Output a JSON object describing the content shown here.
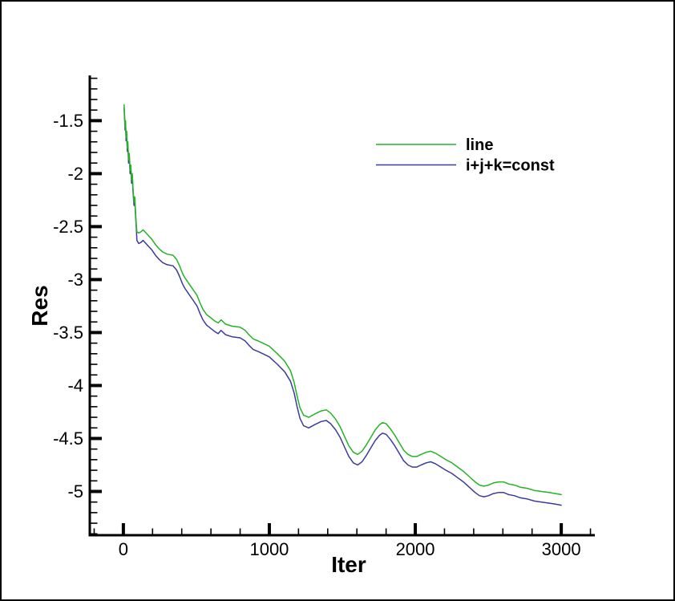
{
  "figure": {
    "background": "#ffffff",
    "border_color": "#000000"
  },
  "chart_data": {
    "type": "line",
    "title": "",
    "xlabel": "Iter",
    "ylabel": "Res",
    "xlim": [
      -230,
      3230
    ],
    "ylim": [
      -5.413,
      -1.073
    ],
    "grid": false,
    "axis_color": "#000000",
    "x_major_ticks": [
      {
        "v": 0,
        "label": "0"
      },
      {
        "v": 1000,
        "label": "1000"
      },
      {
        "v": 2000,
        "label": "2000"
      },
      {
        "v": 3000,
        "label": "3000"
      }
    ],
    "x_minor_tick_step": 200,
    "y_major_ticks": [
      {
        "v": -1.5,
        "label": "-1.5"
      },
      {
        "v": -2,
        "label": "-2"
      },
      {
        "v": -2.5,
        "label": "-2.5"
      },
      {
        "v": -3,
        "label": "-3"
      },
      {
        "v": -3.5,
        "label": "-3.5"
      },
      {
        "v": -4,
        "label": "-4"
      },
      {
        "v": -4.5,
        "label": "-4.5"
      },
      {
        "v": -5,
        "label": "-5"
      }
    ],
    "y_minor_tick_step": 0.1,
    "legend_position": "upper-center",
    "series": [
      {
        "name": "i+j+k=const",
        "color": "#3b3b9e",
        "points": [
          [
            5,
            -1.38
          ],
          [
            8,
            -1.46
          ],
          [
            12,
            -1.59
          ],
          [
            15,
            -1.53
          ],
          [
            19,
            -1.69
          ],
          [
            23,
            -1.63
          ],
          [
            27,
            -1.79
          ],
          [
            31,
            -1.73
          ],
          [
            36,
            -1.9
          ],
          [
            41,
            -1.84
          ],
          [
            46,
            -2.0
          ],
          [
            51,
            -1.95
          ],
          [
            56,
            -2.09
          ],
          [
            61,
            -2.03
          ],
          [
            67,
            -2.19
          ],
          [
            73,
            -2.3
          ],
          [
            78,
            -2.25
          ],
          [
            84,
            -2.41
          ],
          [
            89,
            -2.52
          ],
          [
            93,
            -2.63
          ],
          [
            105,
            -2.66
          ],
          [
            120,
            -2.65
          ],
          [
            135,
            -2.63
          ],
          [
            155,
            -2.66
          ],
          [
            175,
            -2.69
          ],
          [
            195,
            -2.72
          ],
          [
            220,
            -2.77
          ],
          [
            245,
            -2.81
          ],
          [
            270,
            -2.84
          ],
          [
            300,
            -2.86
          ],
          [
            340,
            -2.87
          ],
          [
            365,
            -2.91
          ],
          [
            385,
            -2.97
          ],
          [
            405,
            -3.04
          ],
          [
            420,
            -3.08
          ],
          [
            445,
            -3.13
          ],
          [
            475,
            -3.19
          ],
          [
            505,
            -3.25
          ],
          [
            525,
            -3.32
          ],
          [
            545,
            -3.38
          ],
          [
            570,
            -3.43
          ],
          [
            598,
            -3.46
          ],
          [
            625,
            -3.49
          ],
          [
            650,
            -3.51
          ],
          [
            669,
            -3.48
          ],
          [
            700,
            -3.52
          ],
          [
            745,
            -3.54
          ],
          [
            800,
            -3.55
          ],
          [
            835,
            -3.58
          ],
          [
            860,
            -3.62
          ],
          [
            890,
            -3.66
          ],
          [
            925,
            -3.68
          ],
          [
            955,
            -3.7
          ],
          [
            1000,
            -3.73
          ],
          [
            1055,
            -3.8
          ],
          [
            1105,
            -3.87
          ],
          [
            1145,
            -3.96
          ],
          [
            1170,
            -4.07
          ],
          [
            1190,
            -4.2
          ],
          [
            1210,
            -4.31
          ],
          [
            1235,
            -4.38
          ],
          [
            1270,
            -4.4
          ],
          [
            1310,
            -4.37
          ],
          [
            1355,
            -4.34
          ],
          [
            1390,
            -4.33
          ],
          [
            1420,
            -4.36
          ],
          [
            1455,
            -4.42
          ],
          [
            1485,
            -4.49
          ],
          [
            1515,
            -4.58
          ],
          [
            1545,
            -4.67
          ],
          [
            1575,
            -4.73
          ],
          [
            1605,
            -4.75
          ],
          [
            1635,
            -4.72
          ],
          [
            1665,
            -4.66
          ],
          [
            1695,
            -4.59
          ],
          [
            1725,
            -4.52
          ],
          [
            1755,
            -4.47
          ],
          [
            1775,
            -4.45
          ],
          [
            1800,
            -4.46
          ],
          [
            1830,
            -4.51
          ],
          [
            1860,
            -4.57
          ],
          [
            1890,
            -4.64
          ],
          [
            1920,
            -4.71
          ],
          [
            1950,
            -4.75
          ],
          [
            1980,
            -4.77
          ],
          [
            2010,
            -4.77
          ],
          [
            2040,
            -4.75
          ],
          [
            2075,
            -4.73
          ],
          [
            2105,
            -4.72
          ],
          [
            2140,
            -4.74
          ],
          [
            2175,
            -4.77
          ],
          [
            2210,
            -4.8
          ],
          [
            2250,
            -4.83
          ],
          [
            2290,
            -4.87
          ],
          [
            2330,
            -4.91
          ],
          [
            2370,
            -4.96
          ],
          [
            2410,
            -5.01
          ],
          [
            2440,
            -5.04
          ],
          [
            2470,
            -5.05
          ],
          [
            2500,
            -5.04
          ],
          [
            2535,
            -5.02
          ],
          [
            2570,
            -5.01
          ],
          [
            2605,
            -5.01
          ],
          [
            2640,
            -5.03
          ],
          [
            2680,
            -5.04
          ],
          [
            2720,
            -5.06
          ],
          [
            2765,
            -5.07
          ],
          [
            2815,
            -5.09
          ],
          [
            2865,
            -5.1
          ],
          [
            2915,
            -5.11
          ],
          [
            2960,
            -5.12
          ],
          [
            3000,
            -5.13
          ]
        ]
      },
      {
        "name": "line",
        "color": "#25b225",
        "points": [
          [
            5,
            -1.35
          ],
          [
            8,
            -1.43
          ],
          [
            12,
            -1.56
          ],
          [
            15,
            -1.5
          ],
          [
            19,
            -1.66
          ],
          [
            23,
            -1.6
          ],
          [
            27,
            -1.76
          ],
          [
            31,
            -1.7
          ],
          [
            36,
            -1.87
          ],
          [
            41,
            -1.81
          ],
          [
            46,
            -1.97
          ],
          [
            51,
            -1.92
          ],
          [
            56,
            -2.06
          ],
          [
            61,
            -2.0
          ],
          [
            67,
            -2.16
          ],
          [
            73,
            -2.27
          ],
          [
            78,
            -2.22
          ],
          [
            84,
            -2.38
          ],
          [
            89,
            -2.49
          ],
          [
            93,
            -2.55
          ],
          [
            105,
            -2.56
          ],
          [
            120,
            -2.55
          ],
          [
            135,
            -2.53
          ],
          [
            155,
            -2.56
          ],
          [
            175,
            -2.59
          ],
          [
            195,
            -2.62
          ],
          [
            220,
            -2.67
          ],
          [
            245,
            -2.71
          ],
          [
            270,
            -2.74
          ],
          [
            300,
            -2.76
          ],
          [
            340,
            -2.77
          ],
          [
            365,
            -2.81
          ],
          [
            385,
            -2.87
          ],
          [
            405,
            -2.94
          ],
          [
            420,
            -2.98
          ],
          [
            445,
            -3.03
          ],
          [
            475,
            -3.09
          ],
          [
            505,
            -3.15
          ],
          [
            525,
            -3.22
          ],
          [
            545,
            -3.28
          ],
          [
            570,
            -3.33
          ],
          [
            598,
            -3.36
          ],
          [
            625,
            -3.39
          ],
          [
            650,
            -3.41
          ],
          [
            669,
            -3.38
          ],
          [
            700,
            -3.42
          ],
          [
            745,
            -3.44
          ],
          [
            800,
            -3.45
          ],
          [
            835,
            -3.48
          ],
          [
            860,
            -3.52
          ],
          [
            890,
            -3.56
          ],
          [
            925,
            -3.58
          ],
          [
            955,
            -3.6
          ],
          [
            1000,
            -3.63
          ],
          [
            1055,
            -3.7
          ],
          [
            1105,
            -3.77
          ],
          [
            1145,
            -3.86
          ],
          [
            1170,
            -3.97
          ],
          [
            1190,
            -4.1
          ],
          [
            1210,
            -4.21
          ],
          [
            1235,
            -4.28
          ],
          [
            1270,
            -4.3
          ],
          [
            1310,
            -4.27
          ],
          [
            1355,
            -4.24
          ],
          [
            1390,
            -4.23
          ],
          [
            1420,
            -4.26
          ],
          [
            1455,
            -4.32
          ],
          [
            1485,
            -4.39
          ],
          [
            1515,
            -4.48
          ],
          [
            1545,
            -4.57
          ],
          [
            1575,
            -4.63
          ],
          [
            1605,
            -4.65
          ],
          [
            1635,
            -4.62
          ],
          [
            1665,
            -4.56
          ],
          [
            1695,
            -4.49
          ],
          [
            1725,
            -4.42
          ],
          [
            1755,
            -4.37
          ],
          [
            1775,
            -4.35
          ],
          [
            1800,
            -4.36
          ],
          [
            1830,
            -4.41
          ],
          [
            1860,
            -4.47
          ],
          [
            1890,
            -4.54
          ],
          [
            1920,
            -4.61
          ],
          [
            1950,
            -4.65
          ],
          [
            1980,
            -4.67
          ],
          [
            2010,
            -4.67
          ],
          [
            2040,
            -4.65
          ],
          [
            2075,
            -4.63
          ],
          [
            2105,
            -4.62
          ],
          [
            2140,
            -4.64
          ],
          [
            2175,
            -4.67
          ],
          [
            2210,
            -4.7
          ],
          [
            2250,
            -4.73
          ],
          [
            2290,
            -4.77
          ],
          [
            2330,
            -4.81
          ],
          [
            2370,
            -4.86
          ],
          [
            2410,
            -4.91
          ],
          [
            2440,
            -4.94
          ],
          [
            2470,
            -4.95
          ],
          [
            2500,
            -4.94
          ],
          [
            2535,
            -4.92
          ],
          [
            2570,
            -4.91
          ],
          [
            2605,
            -4.91
          ],
          [
            2640,
            -4.93
          ],
          [
            2680,
            -4.94
          ],
          [
            2720,
            -4.96
          ],
          [
            2765,
            -4.97
          ],
          [
            2815,
            -4.99
          ],
          [
            2865,
            -5.0
          ],
          [
            2915,
            -5.01
          ],
          [
            2960,
            -5.02
          ],
          [
            3000,
            -5.03
          ]
        ]
      }
    ],
    "legend_entries": [
      {
        "label": "line",
        "color": "#25b225"
      },
      {
        "label": "i+j+k=const",
        "color": "#3b3b9e"
      }
    ]
  }
}
